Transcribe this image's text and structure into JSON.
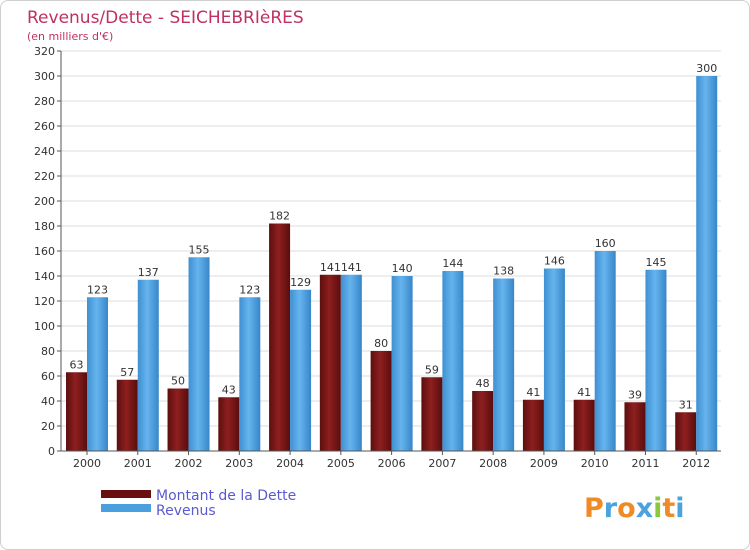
{
  "chart_data": {
    "type": "bar",
    "title": "Revenus/Dette - SEICHEBRIèRES",
    "subtitle": "(en milliers d'€)",
    "categories": [
      "2000",
      "2001",
      "2002",
      "2003",
      "2004",
      "2005",
      "2006",
      "2007",
      "2008",
      "2009",
      "2010",
      "2011",
      "2012"
    ],
    "series": [
      {
        "name": "Montant de la Dette",
        "values": [
          63,
          57,
          50,
          43,
          182,
          141,
          80,
          59,
          48,
          41,
          41,
          39,
          31
        ],
        "color": "#8b1a1a"
      },
      {
        "name": "Revenus",
        "values": [
          123,
          137,
          155,
          123,
          129,
          141,
          140,
          144,
          138,
          146,
          160,
          145,
          300
        ],
        "color": "#4a9fdf"
      }
    ],
    "yticks": [
      0,
      20,
      40,
      60,
      80,
      100,
      120,
      140,
      160,
      180,
      200,
      220,
      240,
      260,
      280,
      300,
      320
    ],
    "ylim": [
      0,
      320
    ],
    "grid": true,
    "legend_position": "bottom-left"
  },
  "brand": {
    "letters": [
      "P",
      "r",
      "o",
      "x",
      "i",
      "t",
      "i"
    ],
    "colors": [
      "#f08a24",
      "#4aa3df",
      "#f08a24",
      "#4aa3df",
      "#8dc63f",
      "#f08a24",
      "#4aa3df"
    ]
  }
}
